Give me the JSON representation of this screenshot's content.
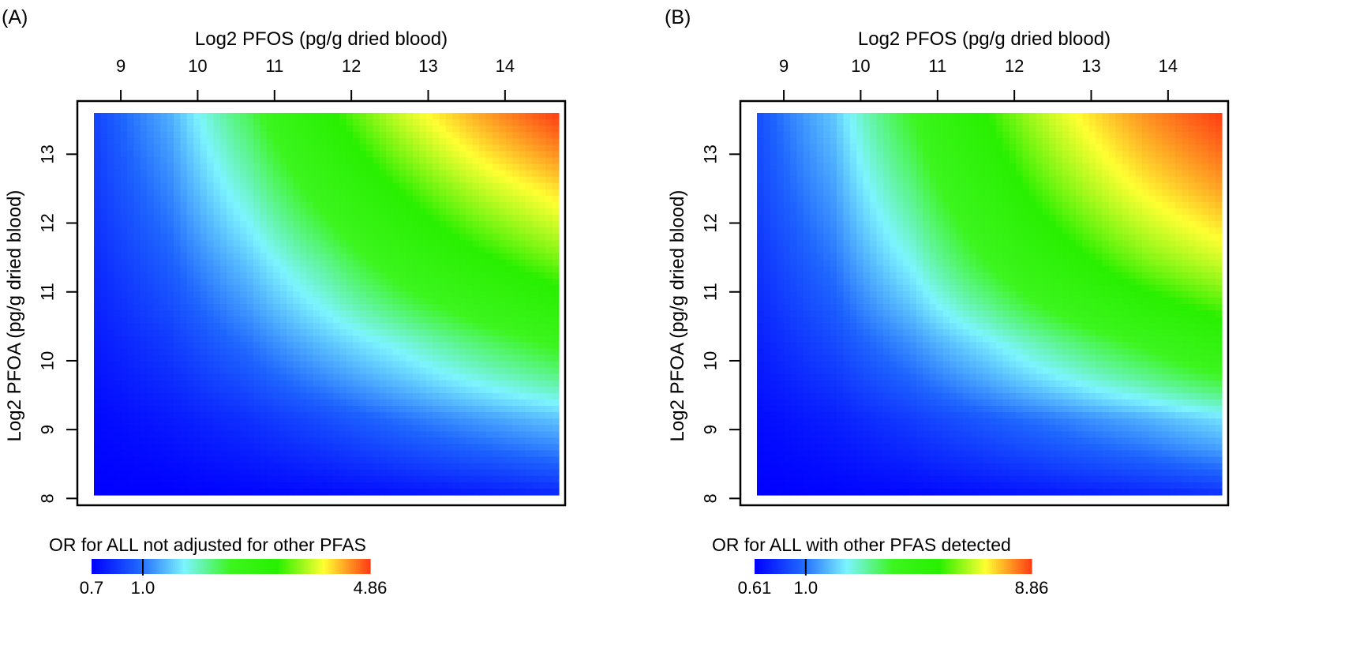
{
  "chart_data": [
    {
      "type": "heatmap",
      "panel_label": "(A)",
      "xlabel": "Log2 PFOS (pg/g dried blood)",
      "ylabel": "Log2 PFOA (pg/g dried blood)",
      "x_ticks": [
        9,
        10,
        11,
        12,
        13,
        14
      ],
      "y_ticks": [
        8,
        9,
        10,
        11,
        12,
        13
      ],
      "xlim": [
        8.65,
        14.7
      ],
      "ylim": [
        8.05,
        13.6
      ],
      "grid": false,
      "x_axis_position": "top",
      "colorbar": {
        "title": "OR for ALL not adjusted for other PFAS",
        "min": 0.7,
        "reference": 1.0,
        "max": 4.86,
        "labels": [
          "0.7",
          "1.0",
          "4.86"
        ],
        "colors": [
          "#0000ff",
          "#1e64ff",
          "#7df4ff",
          "#3cf51e",
          "#28f000",
          "#ffff32",
          "#ff3c14"
        ]
      },
      "values": [
        [
          0.7,
          0.7,
          0.71,
          0.72,
          0.74,
          0.76,
          0.79
        ],
        [
          0.72,
          0.76,
          0.82,
          0.9,
          1.0,
          1.1,
          1.2
        ],
        [
          0.76,
          0.85,
          1.0,
          1.2,
          1.4,
          1.65,
          1.9
        ],
        [
          0.8,
          0.95,
          1.2,
          1.55,
          2.0,
          2.4,
          2.8
        ],
        [
          0.84,
          1.05,
          1.45,
          2.0,
          2.6,
          3.2,
          3.7
        ],
        [
          0.87,
          1.15,
          1.7,
          2.45,
          3.3,
          4.1,
          4.86
        ]
      ]
    },
    {
      "type": "heatmap",
      "panel_label": "(B)",
      "xlabel": "Log2 PFOS (pg/g dried blood)",
      "ylabel": "Log2 PFOA (pg/g dried blood)",
      "x_ticks": [
        9,
        10,
        11,
        12,
        13,
        14
      ],
      "y_ticks": [
        8,
        9,
        10,
        11,
        12,
        13
      ],
      "xlim": [
        8.65,
        14.7
      ],
      "ylim": [
        8.05,
        13.6
      ],
      "grid": false,
      "x_axis_position": "top",
      "colorbar": {
        "title": "OR for ALL with other PFAS detected",
        "min": 0.61,
        "reference": 1.0,
        "max": 8.86,
        "labels": [
          "0.61",
          "1.0",
          "8.86"
        ],
        "colors": [
          "#0000ff",
          "#1e64ff",
          "#7df4ff",
          "#3cf51e",
          "#28f000",
          "#ffff32",
          "#ff3c14"
        ]
      },
      "values": [
        [
          0.61,
          0.62,
          0.63,
          0.65,
          0.68,
          0.71,
          0.75
        ],
        [
          0.64,
          0.7,
          0.8,
          0.92,
          1.05,
          1.2,
          1.4
        ],
        [
          0.7,
          0.85,
          1.1,
          1.45,
          1.9,
          2.4,
          3.0
        ],
        [
          0.76,
          1.0,
          1.5,
          2.3,
          3.2,
          4.2,
          5.0
        ],
        [
          0.82,
          1.15,
          1.9,
          3.0,
          4.4,
          5.8,
          7.0
        ],
        [
          0.86,
          1.3,
          2.3,
          3.7,
          5.5,
          7.3,
          8.86
        ]
      ]
    }
  ]
}
